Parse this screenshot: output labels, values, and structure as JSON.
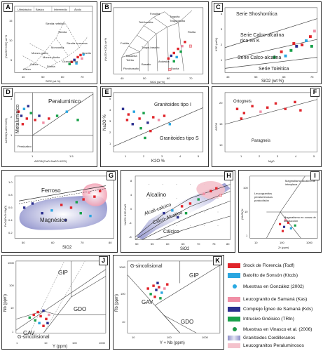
{
  "panels": {
    "A": {
      "label": "A",
      "ylabel": "(Na2O+K2O) wt %",
      "xlabel": "SiO2 (wt %)",
      "top_fields": [
        "Ultrabásico",
        "Básico",
        "Intermedio",
        "Ácido"
      ],
      "fields": [
        "Sienita nefelina",
        "Sienita",
        "Sienita cuarzosa",
        "Monzonita",
        "Monzo-gabro",
        "Monzo-diorita",
        "Gabro",
        "Diorita",
        "Granodiorita",
        "Granito",
        "Gabro"
      ],
      "xticks": [
        "40",
        "50",
        "60",
        "70"
      ],
      "yticks": [
        "5",
        "10",
        "15"
      ]
    },
    "B": {
      "label": "B",
      "ylabel": "(Na2O+K2O) wt %",
      "xlabel": "SiO2 (wt %)",
      "fields": [
        "Foidita",
        "Tefrifonolita",
        "Fonolita",
        "Traquita",
        "Traquidacita",
        "Riolita",
        "Basanita",
        "Tefrita",
        "Traqui-basalto",
        "Dacita",
        "Andesita",
        "Basalto",
        "Picrobasalto"
      ],
      "xticks": [
        "40",
        "50",
        "60",
        "70"
      ]
    },
    "C": {
      "label": "C",
      "ylabel": "K2O (wt%)",
      "xlabel": "SiO2 (wt %)",
      "fields": [
        "Serie Shoshonítica",
        "Serie Calco-alcalina rica en K",
        "Serie Calco-alcalina",
        "Serie Toleitica"
      ],
      "xticks": [
        "45",
        "55",
        "65",
        "75"
      ],
      "yticks": [
        "1",
        "2",
        "3",
        "4"
      ]
    },
    "D": {
      "label": "D",
      "ylabel": "Al2O3/(Na2O+K2O)",
      "xlabel": "Al2O3/(CaO+Na2O+K2O)",
      "fields": [
        "Metaluminico",
        "Peraluminico",
        "Peralcalino"
      ],
      "xticks": [
        "1",
        "1.5"
      ],
      "yticks": [
        "1",
        "2",
        "3"
      ]
    },
    "E": {
      "label": "E",
      "ylabel": "Na2O %",
      "xlabel": "K2O %",
      "fields": [
        "Granitoides tipo I",
        "Granitoides tipo S"
      ],
      "xticks": [
        "1",
        "2",
        "3",
        "4",
        "5"
      ],
      "yticks": [
        "1",
        "2",
        "3",
        "4",
        "5"
      ]
    },
    "F": {
      "label": "F",
      "ylabel": "Al2O3",
      "xlabel": "MgO",
      "fields": [
        "Ortogneis",
        "Paragneis"
      ],
      "xticks": [
        "1",
        "2",
        "3",
        "4",
        "5"
      ],
      "yticks": [
        "10",
        "15",
        "20"
      ]
    },
    "G": {
      "label": "G",
      "ylabel": "FeO/(FeO+MgO)",
      "xlabel": "SiO2",
      "fields": [
        "Ferroso",
        "Magnésico"
      ],
      "xticks": [
        "50",
        "60",
        "70",
        "80"
      ],
      "yticks": [
        "0.2",
        "0.4",
        "0.6",
        "0.8",
        "1.0"
      ]
    },
    "H": {
      "label": "H",
      "ylabel": "Na2O+K2O-CaO",
      "xlabel": "SiO2",
      "fields": [
        "Alcalino",
        "Alcali-calcico",
        "Calco-Alcalino",
        "Cálcico"
      ],
      "xticks": [
        "50",
        "55",
        "60",
        "65",
        "70",
        "75",
        "80"
      ],
      "yticks": [
        "-8",
        "-4",
        "0",
        "4",
        "8"
      ]
    },
    "I": {
      "label": "I",
      "ylabel": "(Nb/Zr)N",
      "xlabel": "Zr (ppm)",
      "fields": [
        "Magmatismo alcalino de intraplaca",
        "Leucogranitos peraluminosos postcolisión",
        "Magmatismo en zonas de subducción"
      ],
      "xticks": [
        "10",
        "100",
        "1000"
      ],
      "yticks": [
        "1",
        "10",
        "100"
      ]
    },
    "J": {
      "label": "J",
      "ylabel": "Nb (ppm)",
      "xlabel": "Y (ppm)",
      "fields": [
        "GIP",
        "GDO",
        "GAV",
        "G-sincolisional"
      ],
      "xticks": [
        "1",
        "10",
        "100",
        "1000"
      ],
      "yticks": [
        "1",
        "10",
        "100",
        "1000"
      ]
    },
    "K": {
      "label": "K",
      "ylabel": "Rb (ppm)",
      "xlabel": "Y + Nb (ppm)",
      "fields": [
        "G-sincolisional",
        "GIP",
        "GAV",
        "GDO"
      ],
      "xticks": [
        "10",
        "100",
        "1000"
      ],
      "yticks": [
        "10",
        "100",
        "1000"
      ]
    }
  },
  "legend": [
    {
      "label": "Stock de Florencia (Todf)",
      "color": "#e0252b"
    },
    {
      "label": "Batolito de Sonsón (Ktcds)",
      "color": "#2aa6e0"
    },
    {
      "label": "Muestras en González (2002)",
      "color": "#29a9e1",
      "marker": "circle"
    },
    {
      "label": "Leucogranito de Samaná (Kas)",
      "color": "#f08fa6"
    },
    {
      "label": "Complejo Ígneo de Samaná (Kds)",
      "color": "#2b2f8f"
    },
    {
      "label": "Intrusivo Gnéisico (TRIn)",
      "color": "#19a14a"
    },
    {
      "label": "Muestras en Vinasco et al. (2006)",
      "color": "#1d9a48",
      "marker": "circle"
    },
    {
      "label": "Granitoides Cordilleranos",
      "color": "#8d8ec7"
    },
    {
      "label": "Leucogranitos Peraluminosos",
      "color": "#f4c2cc"
    }
  ]
}
